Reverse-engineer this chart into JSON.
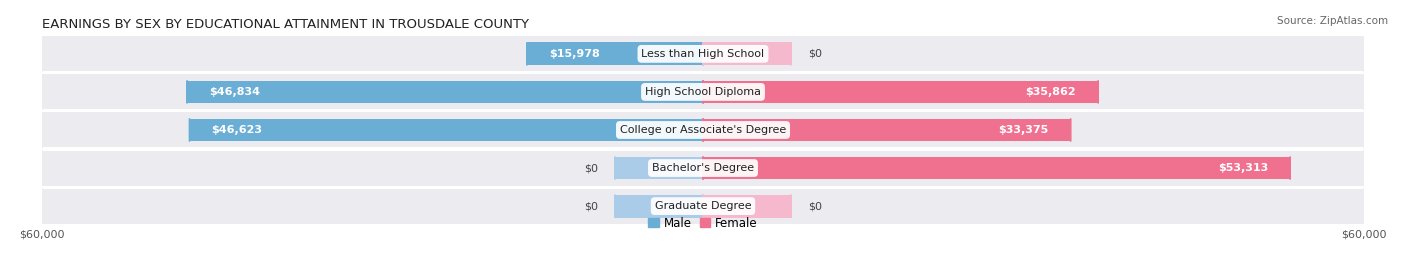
{
  "title": "EARNINGS BY SEX BY EDUCATIONAL ATTAINMENT IN TROUSDALE COUNTY",
  "source": "Source: ZipAtlas.com",
  "categories": [
    "Less than High School",
    "High School Diploma",
    "College or Associate's Degree",
    "Bachelor's Degree",
    "Graduate Degree"
  ],
  "male_values": [
    15978,
    46834,
    46623,
    0,
    0
  ],
  "female_values": [
    0,
    35862,
    33375,
    53313,
    0
  ],
  "male_labels": [
    "$15,978",
    "$46,834",
    "$46,623",
    "$0",
    "$0"
  ],
  "female_labels": [
    "$0",
    "$35,862",
    "$33,375",
    "$53,313",
    "$0"
  ],
  "male_color": "#6aaed6",
  "female_color": "#f07090",
  "male_color_light": "#aacce8",
  "female_color_light": "#f5b8cc",
  "row_bg_color": "#ebebf0",
  "max_value": 60000,
  "xlabel_left": "$60,000",
  "xlabel_right": "$60,000",
  "title_fontsize": 9.5,
  "source_fontsize": 7.5,
  "label_fontsize": 8,
  "tick_fontsize": 8,
  "legend_fontsize": 8.5,
  "fig_bg_color": "#ffffff",
  "stub_value": 8000
}
